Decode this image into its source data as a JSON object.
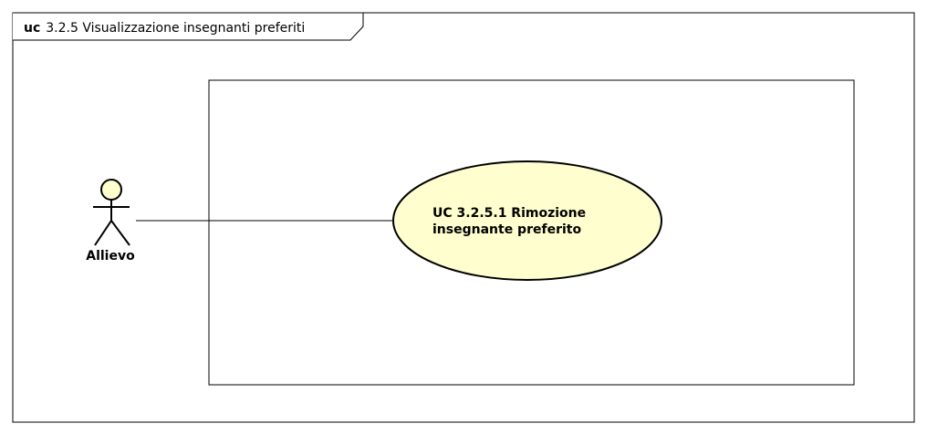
{
  "diagram": {
    "frame": {
      "kind": "uc",
      "name": "3.2.5 Visualizzazione insegnanti preferiti"
    },
    "actor": {
      "name": "Allievo"
    },
    "use_case": {
      "line1": "UC 3.2.5.1 Rimozione",
      "line2": "insegnante preferito"
    },
    "colors": {
      "stroke": "#000000",
      "fill": "#fefece",
      "background": "#ffffff"
    }
  }
}
